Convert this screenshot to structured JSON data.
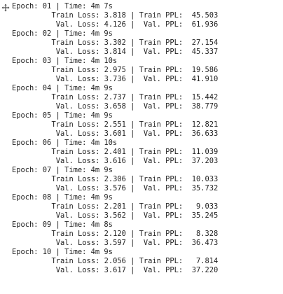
{
  "epochs": [
    {
      "header": "Epoch: 01 | Time: 4m 7s",
      "train": "  Train Loss: 3.818 | Train PPL:  45.503",
      "val": "   Val. Loss: 4.126 |  Val. PPL:  61.936"
    },
    {
      "header": "Epoch: 02 | Time: 4m 9s",
      "train": "  Train Loss: 3.302 | Train PPL:  27.154",
      "val": "   Val. Loss: 3.814 |  Val. PPL:  45.337"
    },
    {
      "header": "Epoch: 03 | Time: 4m 10s",
      "train": "  Train Loss: 2.975 | Train PPL:  19.586",
      "val": "   Val. Loss: 3.736 |  Val. PPL:  41.910"
    },
    {
      "header": "Epoch: 04 | Time: 4m 9s",
      "train": "  Train Loss: 2.737 | Train PPL:  15.442",
      "val": "   Val. Loss: 3.658 |  Val. PPL:  38.779"
    },
    {
      "header": "Epoch: 05 | Time: 4m 9s",
      "train": "  Train Loss: 2.551 | Train PPL:  12.821",
      "val": "   Val. Loss: 3.601 |  Val. PPL:  36.633"
    },
    {
      "header": "Epoch: 06 | Time: 4m 10s",
      "train": "  Train Loss: 2.401 | Train PPL:  11.039",
      "val": "   Val. Loss: 3.616 |  Val. PPL:  37.203"
    },
    {
      "header": "Epoch: 07 | Time: 4m 9s",
      "train": "  Train Loss: 2.306 | Train PPL:  10.033",
      "val": "   Val. Loss: 3.576 |  Val. PPL:  35.732"
    },
    {
      "header": "Epoch: 08 | Time: 4m 9s",
      "train": "  Train Loss: 2.201 | Train PPL:   9.033",
      "val": "   Val. Loss: 3.562 |  Val. PPL:  35.245"
    },
    {
      "header": "Epoch: 09 | Time: 4m 8s",
      "train": "  Train Loss: 2.120 | Train PPL:   8.328",
      "val": "   Val. Loss: 3.597 |  Val. PPL:  36.473"
    },
    {
      "header": "Epoch: 10 | Time: 4m 9s",
      "train": "  Train Loss: 2.056 | Train PPL:   7.814",
      "val": "   Val. Loss: 3.617 |  Val. PPL:  37.220"
    }
  ],
  "colors": {
    "text": "#222222",
    "background": "#ffffff",
    "icon": "#555555"
  },
  "icons": {
    "cursor": "move-cursor-icon"
  }
}
